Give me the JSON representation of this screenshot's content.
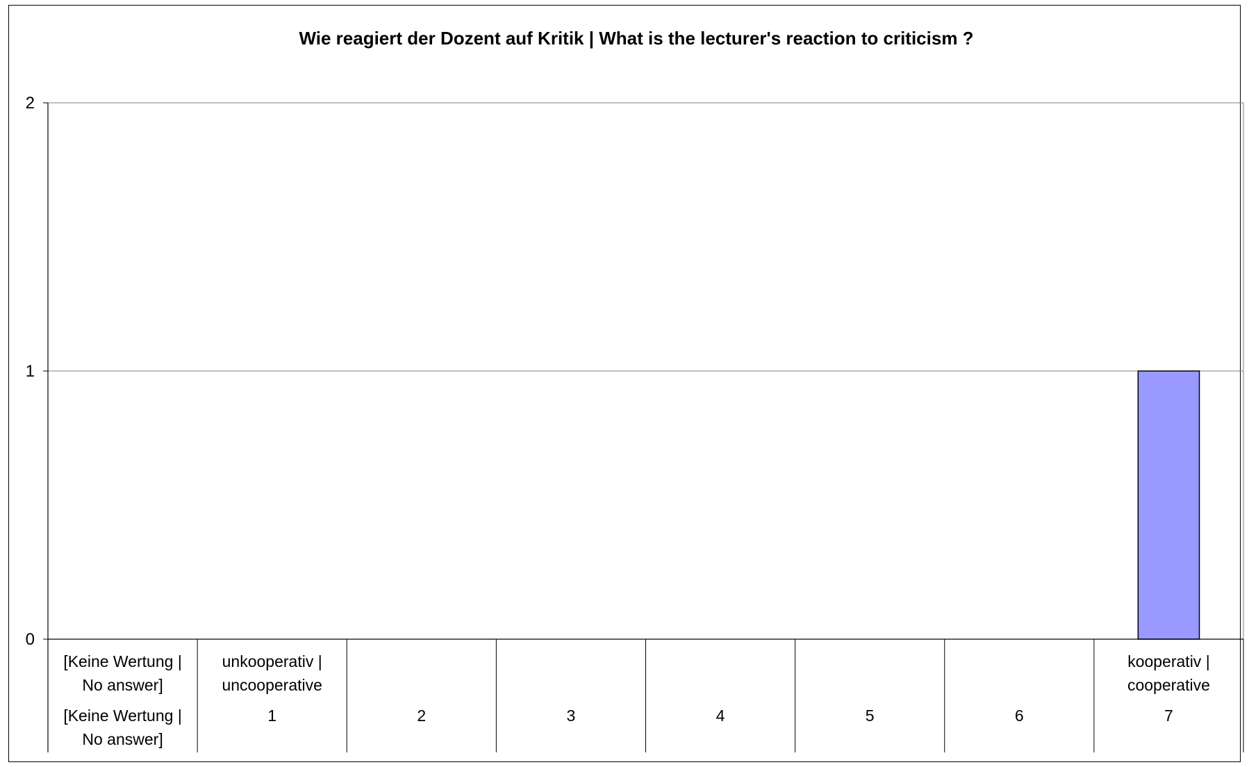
{
  "chart_data": {
    "type": "bar",
    "title": "Wie reagiert der Dozent auf Kritik | What is the lecturer's reaction to criticism ?",
    "xlabel": "",
    "ylabel": "",
    "ylim": [
      0,
      2
    ],
    "y_ticks": [
      "0",
      "1",
      "2"
    ],
    "grid": true,
    "legend": "none",
    "categories": [
      "[Keine Wertung | No answer]",
      "1",
      "2",
      "3",
      "4",
      "5",
      "6",
      "7"
    ],
    "category_top_labels": [
      [
        "[Keine Wertung |",
        "No answer]"
      ],
      [
        "unkooperativ |",
        "uncooperative"
      ],
      [],
      [],
      [],
      [],
      [],
      [
        "kooperativ |",
        "cooperative"
      ]
    ],
    "category_bottom_labels": [
      [
        "[Keine Wertung |",
        "No answer]"
      ],
      [
        "1"
      ],
      [
        "2"
      ],
      [
        "3"
      ],
      [
        "4"
      ],
      [
        "5"
      ],
      [
        "6"
      ],
      [
        "7"
      ]
    ],
    "values": [
      0,
      0,
      0,
      0,
      0,
      0,
      0,
      1
    ],
    "bar_color": "#9999ff",
    "bar_edge_color": "#000000"
  }
}
